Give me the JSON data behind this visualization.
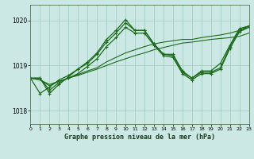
{
  "title": "Graphe pression niveau de la mer (hPa)",
  "bg_color": "#cce8e4",
  "grid_color": "#99ccbb",
  "line_color": "#1a6b1a",
  "xlim": [
    0,
    23
  ],
  "ylim": [
    1017.7,
    1020.35
  ],
  "yticks": [
    1018,
    1019,
    1020
  ],
  "xticks": [
    0,
    1,
    2,
    3,
    4,
    5,
    6,
    7,
    8,
    9,
    10,
    11,
    12,
    13,
    14,
    15,
    16,
    17,
    18,
    19,
    20,
    21,
    22,
    23
  ],
  "series": [
    {
      "y": [
        1018.72,
        1018.72,
        1018.38,
        1018.58,
        1018.75,
        1018.92,
        1019.08,
        1019.28,
        1019.58,
        1019.78,
        1020.02,
        1019.78,
        1019.78,
        1019.48,
        1019.25,
        1019.25,
        1018.88,
        1018.72,
        1018.88,
        1018.88,
        1019.05,
        1019.45,
        1019.82,
        1019.88
      ],
      "marker": "+",
      "ms": 3.5,
      "lw": 0.9,
      "ls": "-"
    },
    {
      "y": [
        1018.72,
        1018.38,
        1018.52,
        1018.68,
        1018.78,
        1018.92,
        1019.05,
        1019.25,
        1019.52,
        1019.72,
        1019.95,
        1019.78,
        1019.78,
        1019.48,
        1019.25,
        1019.22,
        1018.85,
        1018.72,
        1018.85,
        1018.85,
        1018.95,
        1019.42,
        1019.78,
        1019.88
      ],
      "marker": "+",
      "ms": 3.5,
      "lw": 0.9,
      "ls": "-"
    },
    {
      "y": [
        1018.72,
        1018.72,
        1018.45,
        1018.62,
        1018.72,
        1018.82,
        1018.98,
        1019.15,
        1019.42,
        1019.62,
        1019.85,
        1019.72,
        1019.72,
        1019.45,
        1019.22,
        1019.18,
        1018.82,
        1018.68,
        1018.82,
        1018.82,
        1018.92,
        1019.38,
        1019.75,
        1019.85
      ],
      "marker": "+",
      "ms": 3.5,
      "lw": 0.9,
      "ls": "-"
    },
    {
      "y": [
        1018.72,
        1018.68,
        1018.55,
        1018.65,
        1018.72,
        1018.8,
        1018.88,
        1018.95,
        1019.08,
        1019.18,
        1019.28,
        1019.35,
        1019.42,
        1019.48,
        1019.52,
        1019.55,
        1019.58,
        1019.58,
        1019.62,
        1019.65,
        1019.68,
        1019.72,
        1019.78,
        1019.85
      ],
      "marker": "None",
      "ms": 0,
      "lw": 0.8,
      "ls": "-"
    },
    {
      "y": [
        1018.72,
        1018.68,
        1018.58,
        1018.65,
        1018.72,
        1018.78,
        1018.85,
        1018.92,
        1019.0,
        1019.08,
        1019.15,
        1019.22,
        1019.28,
        1019.35,
        1019.4,
        1019.45,
        1019.5,
        1019.52,
        1019.55,
        1019.58,
        1019.6,
        1019.62,
        1019.65,
        1019.72
      ],
      "marker": "None",
      "ms": 0,
      "lw": 0.8,
      "ls": "-"
    }
  ]
}
